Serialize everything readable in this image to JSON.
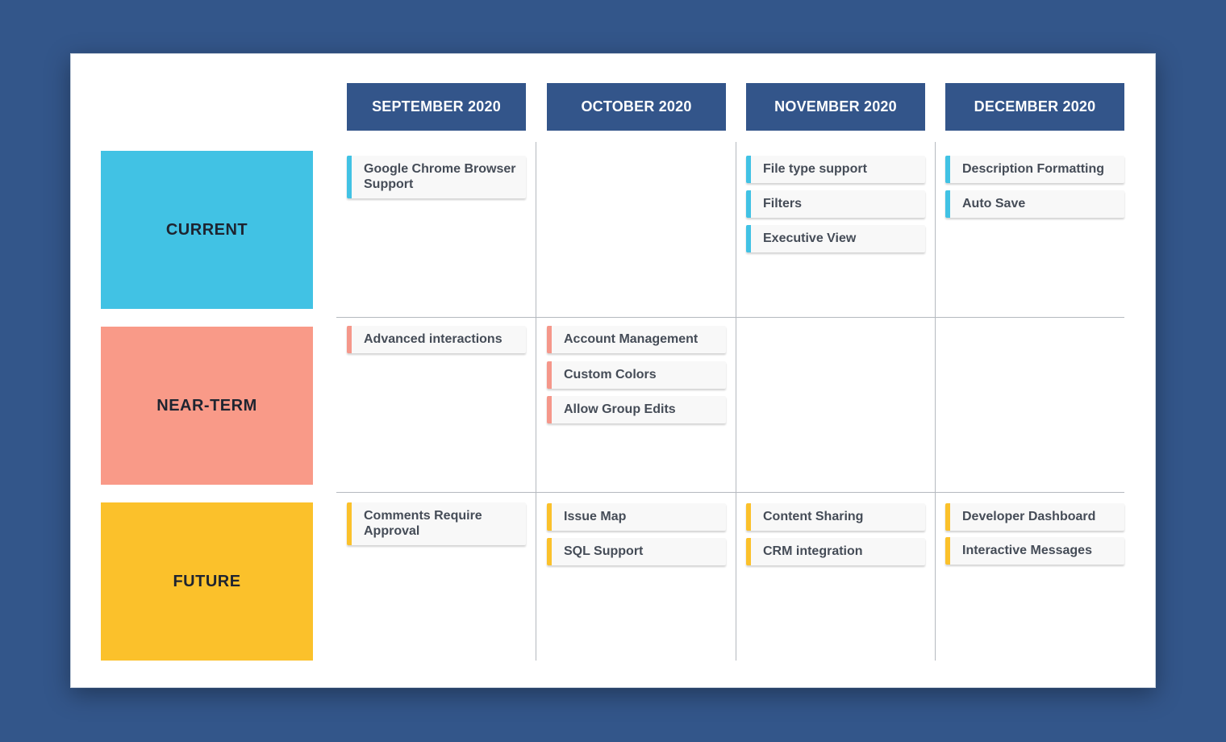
{
  "colors": {
    "background": "#33568a",
    "header": "#33558a",
    "current": "#41c2e4",
    "near_term": "#f99a88",
    "future": "#fbc12b"
  },
  "months": [
    "SEPTEMBER 2020",
    "OCTOBER 2020",
    "NOVEMBER 2020",
    "DECEMBER 2020"
  ],
  "lanes": [
    "CURRENT",
    "NEAR-TERM",
    "FUTURE"
  ],
  "cards": {
    "current": {
      "sep": [
        "Google Chrome Browser Support"
      ],
      "oct": [],
      "nov": [
        "File type support",
        "Filters",
        "Executive View"
      ],
      "dec": [
        "Description Formatting",
        "Auto Save"
      ]
    },
    "near_term": {
      "sep": [
        "Advanced interactions"
      ],
      "oct": [
        "Account Management",
        "Custom Colors",
        "Allow Group Edits"
      ],
      "nov": [],
      "dec": []
    },
    "future": {
      "sep": [
        "Comments Require Approval"
      ],
      "oct": [
        "Issue Map",
        "SQL Support"
      ],
      "nov": [
        "Content Sharing",
        "CRM integration"
      ],
      "dec": [
        "Developer Dashboard",
        "Interactive Messages"
      ]
    }
  }
}
